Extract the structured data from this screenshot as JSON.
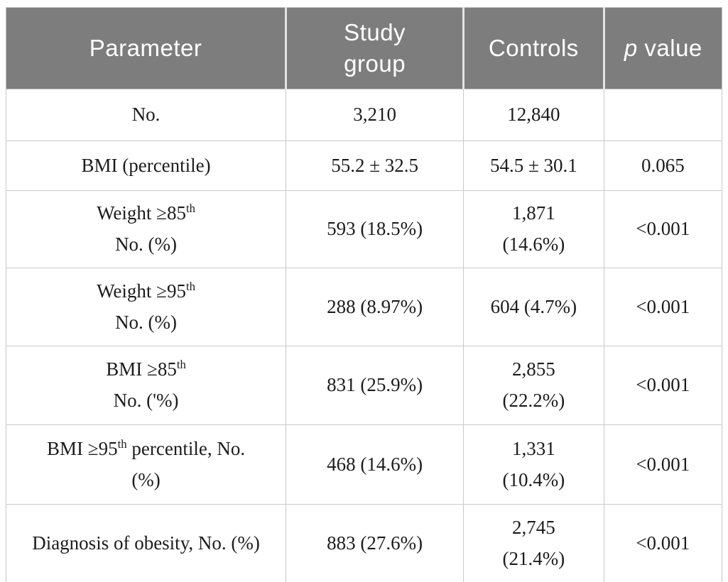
{
  "colors": {
    "header_bg": "#7d7d7d",
    "header_text": "#ffffff",
    "body_text": "#1c1c1c",
    "grid_line": "#c9c9c9",
    "page_bg": "#ffffff"
  },
  "header": {
    "parameter": "Parameter",
    "study_line1": "Study",
    "study_line2": "group",
    "controls": "Controls",
    "p_italic": "p",
    "p_rest": " value"
  },
  "rows": [
    {
      "param": {
        "pre": "No.",
        "sup": "",
        "post": "",
        "line2": ""
      },
      "study": "3,210",
      "controls1": "12,840",
      "controls2": "",
      "p": ""
    },
    {
      "param": {
        "pre": "BMI (percentile)",
        "sup": "",
        "post": "",
        "line2": ""
      },
      "study": "55.2 ± 32.5",
      "controls1": "54.5 ± 30.1",
      "controls2": "",
      "p": "0.065"
    },
    {
      "param": {
        "pre": "Weight ≥85",
        "sup": "th",
        "post": "",
        "line2": "No. (%)"
      },
      "study": "593 (18.5%)",
      "controls1": "1,871",
      "controls2": "(14.6%)",
      "p": "<0.001"
    },
    {
      "param": {
        "pre": "Weight ≥95",
        "sup": "th",
        "post": "",
        "line2": "No. (%)"
      },
      "study": "288 (8.97%)",
      "controls1": "604 (4.7%)",
      "controls2": "",
      "p": "<0.001"
    },
    {
      "param": {
        "pre": "BMI ≥85",
        "sup": "th",
        "post": "",
        "line2": "No. ('%)"
      },
      "study": "831 (25.9%)",
      "controls1": "2,855",
      "controls2": "(22.2%)",
      "p": "<0.001"
    },
    {
      "param": {
        "pre": "BMI ≥95",
        "sup": "th",
        "post": " percentile, No.",
        "line2": "(%)"
      },
      "study": "468 (14.6%)",
      "controls1": "1,331",
      "controls2": "(10.4%)",
      "p": "<0.001"
    },
    {
      "param": {
        "pre": "Diagnosis of obesity, No. (%)",
        "sup": "",
        "post": "",
        "line2": ""
      },
      "study": "883 (27.6%)",
      "controls1": "2,745",
      "controls2": "(21.4%)",
      "p": "<0.001"
    }
  ],
  "chart_data": {
    "type": "table",
    "columns": [
      "Parameter",
      "Study group",
      "Controls",
      "p value"
    ],
    "rows": [
      [
        "No.",
        "3,210",
        "12,840",
        ""
      ],
      [
        "BMI (percentile)",
        "55.2 ± 32.5",
        "54.5 ± 30.1",
        "0.065"
      ],
      [
        "Weight ≥85th No. (%)",
        "593 (18.5%)",
        "1,871 (14.6%)",
        "<0.001"
      ],
      [
        "Weight ≥95th No. (%)",
        "288 (8.97%)",
        "604 (4.7%)",
        "<0.001"
      ],
      [
        "BMI ≥85th No. ('%)",
        "831 (25.9%)",
        "2,855 (22.2%)",
        "<0.001"
      ],
      [
        "BMI ≥95th percentile, No. (%)",
        "468 (14.6%)",
        "1,331 (10.4%)",
        "<0.001"
      ],
      [
        "Diagnosis of obesity, No. (%)",
        "883 (27.6%)",
        "2,745 (21.4%)",
        "<0.001"
      ]
    ]
  }
}
